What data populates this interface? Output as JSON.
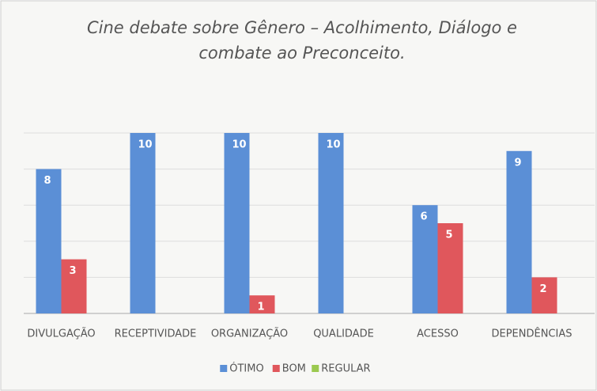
{
  "chart_data": {
    "type": "bar",
    "title": [
      "Cine debate sobre Gênero – Acolhimento, Diálogo e",
      "combate ao Preconceito."
    ],
    "categories": [
      "DIVULGAÇÃO",
      "RECEPTIVIDADE",
      "ORGANIZAÇÃO",
      "QUALIDADE",
      "ACESSO",
      "DEPENDÊNCIAS"
    ],
    "series": [
      {
        "name": "ÓTIMO",
        "color": "#5b8fd6",
        "values": [
          8,
          10,
          10,
          10,
          6,
          9
        ]
      },
      {
        "name": "BOM",
        "color": "#e0575c",
        "values": [
          3,
          null,
          1,
          null,
          5,
          2
        ]
      },
      {
        "name": "REGULAR",
        "color": "#9bc94f",
        "values": [
          null,
          null,
          null,
          null,
          null,
          null
        ]
      }
    ],
    "ylim": [
      0,
      10
    ],
    "yticks": [
      0,
      2,
      4,
      6,
      8,
      10
    ],
    "grid": true,
    "legend": "bottom"
  }
}
